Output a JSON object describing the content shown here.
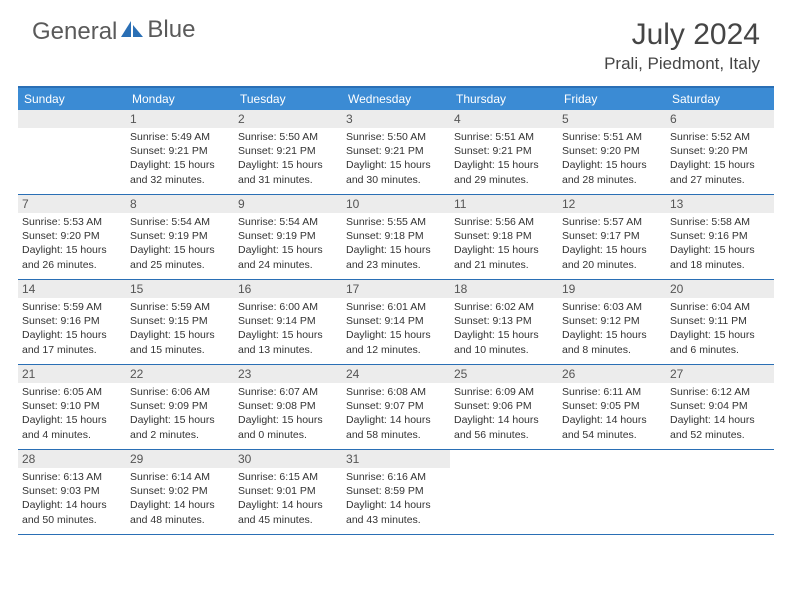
{
  "logo": {
    "text1": "General",
    "text2": "Blue"
  },
  "title": "July 2024",
  "location": "Prali, Piedmont, Italy",
  "colors": {
    "header_bg": "#3b8bd4",
    "border": "#2a6fb5",
    "daynum_bg": "#ececec",
    "logo_accent": "#2a6fb5"
  },
  "weekdays": [
    "Sunday",
    "Monday",
    "Tuesday",
    "Wednesday",
    "Thursday",
    "Friday",
    "Saturday"
  ],
  "weeks": [
    [
      null,
      {
        "n": "1",
        "sr": "5:49 AM",
        "ss": "9:21 PM",
        "dl": "15 hours and 32 minutes."
      },
      {
        "n": "2",
        "sr": "5:50 AM",
        "ss": "9:21 PM",
        "dl": "15 hours and 31 minutes."
      },
      {
        "n": "3",
        "sr": "5:50 AM",
        "ss": "9:21 PM",
        "dl": "15 hours and 30 minutes."
      },
      {
        "n": "4",
        "sr": "5:51 AM",
        "ss": "9:21 PM",
        "dl": "15 hours and 29 minutes."
      },
      {
        "n": "5",
        "sr": "5:51 AM",
        "ss": "9:20 PM",
        "dl": "15 hours and 28 minutes."
      },
      {
        "n": "6",
        "sr": "5:52 AM",
        "ss": "9:20 PM",
        "dl": "15 hours and 27 minutes."
      }
    ],
    [
      {
        "n": "7",
        "sr": "5:53 AM",
        "ss": "9:20 PM",
        "dl": "15 hours and 26 minutes."
      },
      {
        "n": "8",
        "sr": "5:54 AM",
        "ss": "9:19 PM",
        "dl": "15 hours and 25 minutes."
      },
      {
        "n": "9",
        "sr": "5:54 AM",
        "ss": "9:19 PM",
        "dl": "15 hours and 24 minutes."
      },
      {
        "n": "10",
        "sr": "5:55 AM",
        "ss": "9:18 PM",
        "dl": "15 hours and 23 minutes."
      },
      {
        "n": "11",
        "sr": "5:56 AM",
        "ss": "9:18 PM",
        "dl": "15 hours and 21 minutes."
      },
      {
        "n": "12",
        "sr": "5:57 AM",
        "ss": "9:17 PM",
        "dl": "15 hours and 20 minutes."
      },
      {
        "n": "13",
        "sr": "5:58 AM",
        "ss": "9:16 PM",
        "dl": "15 hours and 18 minutes."
      }
    ],
    [
      {
        "n": "14",
        "sr": "5:59 AM",
        "ss": "9:16 PM",
        "dl": "15 hours and 17 minutes."
      },
      {
        "n": "15",
        "sr": "5:59 AM",
        "ss": "9:15 PM",
        "dl": "15 hours and 15 minutes."
      },
      {
        "n": "16",
        "sr": "6:00 AM",
        "ss": "9:14 PM",
        "dl": "15 hours and 13 minutes."
      },
      {
        "n": "17",
        "sr": "6:01 AM",
        "ss": "9:14 PM",
        "dl": "15 hours and 12 minutes."
      },
      {
        "n": "18",
        "sr": "6:02 AM",
        "ss": "9:13 PM",
        "dl": "15 hours and 10 minutes."
      },
      {
        "n": "19",
        "sr": "6:03 AM",
        "ss": "9:12 PM",
        "dl": "15 hours and 8 minutes."
      },
      {
        "n": "20",
        "sr": "6:04 AM",
        "ss": "9:11 PM",
        "dl": "15 hours and 6 minutes."
      }
    ],
    [
      {
        "n": "21",
        "sr": "6:05 AM",
        "ss": "9:10 PM",
        "dl": "15 hours and 4 minutes."
      },
      {
        "n": "22",
        "sr": "6:06 AM",
        "ss": "9:09 PM",
        "dl": "15 hours and 2 minutes."
      },
      {
        "n": "23",
        "sr": "6:07 AM",
        "ss": "9:08 PM",
        "dl": "15 hours and 0 minutes."
      },
      {
        "n": "24",
        "sr": "6:08 AM",
        "ss": "9:07 PM",
        "dl": "14 hours and 58 minutes."
      },
      {
        "n": "25",
        "sr": "6:09 AM",
        "ss": "9:06 PM",
        "dl": "14 hours and 56 minutes."
      },
      {
        "n": "26",
        "sr": "6:11 AM",
        "ss": "9:05 PM",
        "dl": "14 hours and 54 minutes."
      },
      {
        "n": "27",
        "sr": "6:12 AM",
        "ss": "9:04 PM",
        "dl": "14 hours and 52 minutes."
      }
    ],
    [
      {
        "n": "28",
        "sr": "6:13 AM",
        "ss": "9:03 PM",
        "dl": "14 hours and 50 minutes."
      },
      {
        "n": "29",
        "sr": "6:14 AM",
        "ss": "9:02 PM",
        "dl": "14 hours and 48 minutes."
      },
      {
        "n": "30",
        "sr": "6:15 AM",
        "ss": "9:01 PM",
        "dl": "14 hours and 45 minutes."
      },
      {
        "n": "31",
        "sr": "6:16 AM",
        "ss": "8:59 PM",
        "dl": "14 hours and 43 minutes."
      },
      null,
      null,
      null
    ]
  ],
  "labels": {
    "sunrise": "Sunrise:",
    "sunset": "Sunset:",
    "daylight": "Daylight:"
  }
}
